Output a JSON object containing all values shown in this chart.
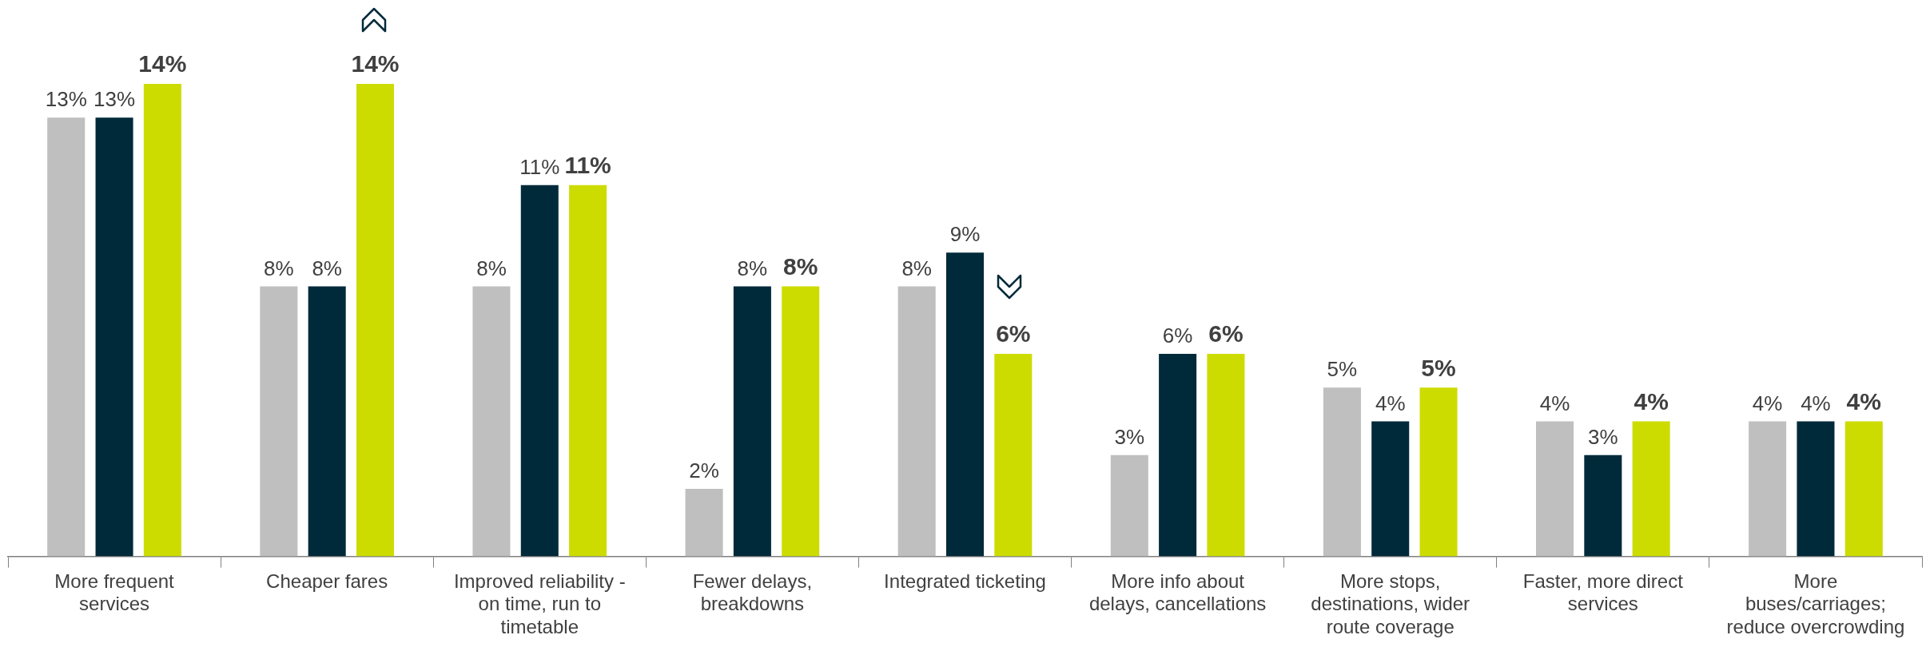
{
  "chart_data": {
    "type": "bar",
    "categories": [
      "More frequent services",
      "Cheaper fares",
      "Improved reliability - on time, run to timetable",
      "Fewer delays, breakdowns",
      "Integrated ticketing",
      "More info about delays, cancellations",
      "More stops, destinations, wider route coverage",
      "Faster, more direct services",
      "More buses/carriages; reduce overcrowding"
    ],
    "series": [
      {
        "color": "#bfbfbf",
        "values": [
          13,
          8,
          8,
          2,
          8,
          3,
          5,
          4,
          4
        ],
        "value_labels": [
          "13%",
          "8%",
          "8%",
          "2%",
          "8%",
          "3%",
          "5%",
          "4%",
          "4%"
        ]
      },
      {
        "color": "#002a3a",
        "values": [
          13,
          8,
          11,
          8,
          9,
          6,
          4,
          3,
          4
        ],
        "value_labels": [
          "13%",
          "8%",
          "11%",
          "8%",
          "9%",
          "6%",
          "4%",
          "3%",
          "4%"
        ]
      },
      {
        "color": "#cddc00",
        "values": [
          14,
          14,
          11,
          8,
          6,
          6,
          5,
          4,
          4
        ],
        "value_labels": [
          "14%",
          "14%",
          "11%",
          "8%",
          "6%",
          "6%",
          "5%",
          "4%",
          "4%"
        ]
      }
    ],
    "grid": false,
    "legend": false
  }
}
